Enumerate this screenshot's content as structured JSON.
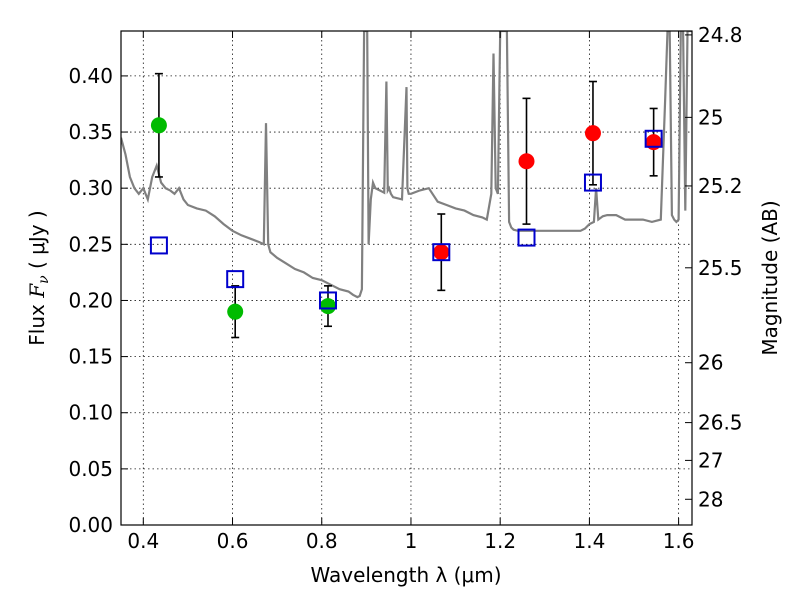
{
  "chart_data": {
    "type": "scatter",
    "xlabel": "Wavelength  λ (μm)",
    "ylabel": "Flux  F_ν  ( μJy )",
    "ylabel_parts": {
      "prefix": "Flux  ",
      "symbol": "F",
      "subscript": "ν",
      "suffix": "  ( μJy )"
    },
    "y2label": "Magnitude (AB)",
    "xlim": [
      0.35,
      1.63
    ],
    "ylim": [
      0.0,
      0.44
    ],
    "grid": true,
    "x_ticks": [
      0.4,
      0.6,
      0.8,
      1.0,
      1.2,
      1.4,
      1.6
    ],
    "x_tick_labels": [
      "0.4",
      "0.6",
      "0.8",
      "1",
      "1.2",
      "1.4",
      "1.6"
    ],
    "y_ticks": [
      0.0,
      0.05,
      0.1,
      0.15,
      0.2,
      0.25,
      0.3,
      0.35,
      0.4
    ],
    "y_tick_labels": [
      "0.00",
      "0.05",
      "0.10",
      "0.15",
      "0.20",
      "0.25",
      "0.30",
      "0.35",
      "0.40"
    ],
    "y2_ticks": [
      24.8,
      25,
      25.2,
      25.5,
      26,
      26.5,
      27,
      28
    ],
    "y2_tick_labels": [
      "24.8",
      "25",
      "25.2",
      "25.5",
      "26",
      "26.5",
      "27",
      "28"
    ],
    "colors": {
      "green": "#00bb00",
      "red": "#ff0000",
      "blue": "#0000cc",
      "spectrum": "#808080",
      "errorbar": "#000000"
    },
    "series": [
      {
        "kind": "observed-green",
        "marker": "circle",
        "color": "#00bb00",
        "x": [
          0.435,
          0.606,
          0.814
        ],
        "y": [
          0.356,
          0.19,
          0.195
        ],
        "yerr": [
          0.046,
          0.023,
          0.018
        ]
      },
      {
        "kind": "observed-red",
        "marker": "circle",
        "color": "#ff0000",
        "x": [
          1.068,
          1.259,
          1.408,
          1.544
        ],
        "y": [
          0.243,
          0.324,
          0.349,
          0.341
        ],
        "yerr": [
          0.034,
          0.056,
          0.046,
          0.03
        ]
      },
      {
        "kind": "model",
        "marker": "square",
        "color": "#0000cc",
        "x": [
          0.435,
          0.606,
          0.814,
          1.068,
          1.259,
          1.408,
          1.544
        ],
        "y": [
          0.249,
          0.219,
          0.2,
          0.243,
          0.256,
          0.305,
          0.344
        ]
      },
      {
        "kind": "spectrum",
        "marker": "line",
        "color": "#808080",
        "x": [
          0.35,
          0.36,
          0.37,
          0.38,
          0.39,
          0.4,
          0.41,
          0.42,
          0.43,
          0.44,
          0.45,
          0.46,
          0.47,
          0.48,
          0.49,
          0.5,
          0.52,
          0.54,
          0.56,
          0.58,
          0.6,
          0.62,
          0.64,
          0.66,
          0.67,
          0.675,
          0.68,
          0.685,
          0.7,
          0.72,
          0.74,
          0.76,
          0.78,
          0.8,
          0.82,
          0.84,
          0.86,
          0.87,
          0.88,
          0.885,
          0.89,
          0.895,
          0.9,
          0.902,
          0.905,
          0.91,
          0.915,
          0.92,
          0.93,
          0.94,
          0.945,
          0.948,
          0.951,
          0.955,
          0.96,
          0.98,
          0.99,
          0.992,
          0.995,
          1.0,
          1.02,
          1.04,
          1.06,
          1.08,
          1.1,
          1.12,
          1.14,
          1.16,
          1.17,
          1.18,
          1.185,
          1.19,
          1.195,
          1.2,
          1.21,
          1.215,
          1.22,
          1.225,
          1.23,
          1.24,
          1.25,
          1.26,
          1.28,
          1.3,
          1.32,
          1.34,
          1.36,
          1.38,
          1.39,
          1.4,
          1.41,
          1.415,
          1.42,
          1.43,
          1.44,
          1.46,
          1.48,
          1.5,
          1.52,
          1.54,
          1.56,
          1.57,
          1.575,
          1.58,
          1.585,
          1.59,
          1.595,
          1.6,
          1.605,
          1.61,
          1.615,
          1.62,
          1.63
        ],
        "y": [
          0.345,
          0.33,
          0.31,
          0.3,
          0.295,
          0.3,
          0.29,
          0.31,
          0.32,
          0.305,
          0.3,
          0.298,
          0.295,
          0.3,
          0.29,
          0.285,
          0.282,
          0.28,
          0.275,
          0.268,
          0.262,
          0.258,
          0.255,
          0.252,
          0.25,
          0.358,
          0.25,
          0.243,
          0.238,
          0.233,
          0.228,
          0.225,
          0.22,
          0.218,
          0.214,
          0.21,
          0.208,
          0.205,
          0.203,
          0.204,
          0.21,
          0.44,
          0.44,
          0.44,
          0.25,
          0.29,
          0.305,
          0.3,
          0.298,
          0.296,
          0.395,
          0.298,
          0.3,
          0.295,
          0.292,
          0.29,
          0.39,
          0.3,
          0.295,
          0.295,
          0.298,
          0.3,
          0.288,
          0.285,
          0.282,
          0.28,
          0.276,
          0.274,
          0.272,
          0.295,
          0.42,
          0.3,
          0.295,
          0.44,
          0.44,
          0.44,
          0.27,
          0.265,
          0.263,
          0.262,
          0.262,
          0.262,
          0.262,
          0.262,
          0.262,
          0.262,
          0.262,
          0.262,
          0.264,
          0.268,
          0.27,
          0.3,
          0.272,
          0.275,
          0.276,
          0.276,
          0.272,
          0.272,
          0.272,
          0.27,
          0.272,
          0.38,
          0.44,
          0.44,
          0.276,
          0.272,
          0.27,
          0.272,
          0.44,
          0.44,
          0.28,
          0.44,
          0.44
        ]
      }
    ]
  }
}
